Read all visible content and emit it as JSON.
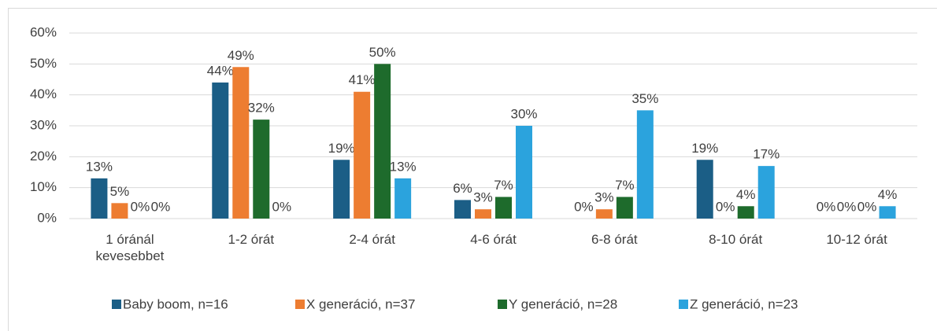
{
  "chart_data": {
    "type": "bar",
    "categories": [
      "1 óránál kevesebbet",
      "1-2 órát",
      "2-4 órát",
      "4-6 órát",
      "6-8 órát",
      "8-10 órát",
      "10-12 órát"
    ],
    "series": [
      {
        "name": "Baby boom, n=16",
        "color": "#1b5e86",
        "values": [
          13,
          44,
          19,
          6,
          0,
          19,
          0
        ],
        "value_labels": [
          "13%",
          "44%",
          "19%",
          "6%",
          "0%",
          "19%",
          "0%"
        ]
      },
      {
        "name": "X generáció, n=37",
        "color": "#ed7d31",
        "values": [
          5,
          49,
          41,
          3,
          3,
          0,
          0
        ],
        "value_labels": [
          "5%",
          "49%",
          "41%",
          "3%",
          "3%",
          "0%",
          "0%"
        ]
      },
      {
        "name": "Y generáció, n=28",
        "color": "#1e6b2c",
        "values": [
          0,
          32,
          50,
          7,
          7,
          4,
          0
        ],
        "value_labels": [
          "0%",
          "32%",
          "50%",
          "7%",
          "7%",
          "4%",
          "0%"
        ]
      },
      {
        "name": "Z generáció, n=23",
        "color": "#2ba3dd",
        "values": [
          0,
          0,
          13,
          30,
          35,
          17,
          4
        ],
        "value_labels": [
          "0%",
          "0%",
          "13%",
          "30%",
          "35%",
          "17%",
          "4%"
        ]
      }
    ],
    "ylim": [
      0,
      60
    ],
    "yticks": [
      {
        "value": 0,
        "label": "0%"
      },
      {
        "value": 10,
        "label": "10%"
      },
      {
        "value": 20,
        "label": "20%"
      },
      {
        "value": 30,
        "label": "30%"
      },
      {
        "value": 40,
        "label": "40%"
      },
      {
        "value": 50,
        "label": "50%"
      },
      {
        "value": 60,
        "label": "60%"
      }
    ],
    "grid": true,
    "legend": "bottom"
  }
}
